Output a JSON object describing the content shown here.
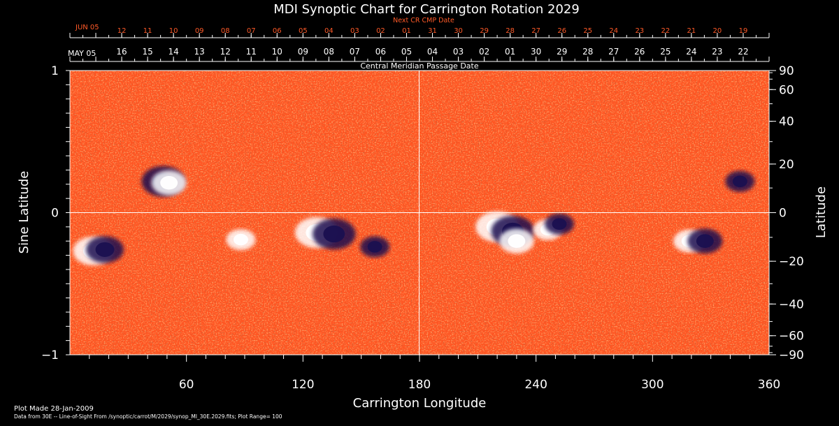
{
  "chart_data": {
    "type": "heatmap",
    "title": "MDI Synoptic Chart for Carrington Rotation 2029",
    "xlabel": "Carrington Longitude",
    "ylabel": "Sine Latitude",
    "y2label": "Latitude",
    "xlim": [
      0,
      360
    ],
    "ylim": [
      -1,
      1
    ],
    "x_ticks": [
      60,
      120,
      180,
      240,
      300,
      360
    ],
    "y_ticks": [
      {
        "value": 1,
        "label": "1"
      },
      {
        "value": 0,
        "label": "0"
      },
      {
        "value": -1,
        "label": "−1"
      }
    ],
    "lat_ticks": [
      90,
      60,
      40,
      20,
      0,
      -20,
      -40,
      -60,
      -90
    ],
    "lat_tick_labels": [
      "90",
      "60",
      "40",
      "20",
      "0",
      "−20",
      "−40",
      "−60",
      "−90"
    ],
    "next_cr_title": "Next CR CMP Date",
    "next_cr_start": "JUN 05",
    "next_cr_dates": [
      "12",
      "11",
      "10",
      "09",
      "08",
      "07",
      "06",
      "05",
      "04",
      "03",
      "02",
      "01",
      "31",
      "30",
      "29",
      "28",
      "27",
      "26",
      "25",
      "24",
      "23",
      "22",
      "21",
      "20",
      "19"
    ],
    "cmp_start": "MAY 05",
    "cmp_dates": [
      "16",
      "15",
      "14",
      "13",
      "12",
      "11",
      "10",
      "09",
      "08",
      "07",
      "06",
      "05",
      "04",
      "03",
      "02",
      "01",
      "30",
      "29",
      "28",
      "27",
      "26",
      "25",
      "24",
      "23",
      "22"
    ],
    "cmp_label": "Central Meridian Passage Date",
    "plot_range": 100,
    "colors": {
      "background": "#000000",
      "field": "#ff5522",
      "positive": "#ffffff",
      "negative": "#1a1050",
      "label_orange": "#ff5a28"
    },
    "regions": [
      {
        "lon": 48,
        "sinlat": 0.22,
        "polarity": "negative",
        "strength": 1.0
      },
      {
        "lon": 51,
        "sinlat": 0.21,
        "polarity": "positive",
        "strength": 0.7
      },
      {
        "lon": 12,
        "sinlat": -0.27,
        "polarity": "positive",
        "strength": 0.9
      },
      {
        "lon": 18,
        "sinlat": -0.26,
        "polarity": "negative",
        "strength": 0.8
      },
      {
        "lon": 88,
        "sinlat": -0.19,
        "polarity": "positive",
        "strength": 0.5
      },
      {
        "lon": 127,
        "sinlat": -0.14,
        "polarity": "positive",
        "strength": 1.0
      },
      {
        "lon": 136,
        "sinlat": -0.15,
        "polarity": "negative",
        "strength": 1.0
      },
      {
        "lon": 157,
        "sinlat": -0.24,
        "polarity": "negative",
        "strength": 0.5
      },
      {
        "lon": 220,
        "sinlat": -0.1,
        "polarity": "positive",
        "strength": 1.0
      },
      {
        "lon": 228,
        "sinlat": -0.13,
        "polarity": "negative",
        "strength": 1.0
      },
      {
        "lon": 230,
        "sinlat": -0.2,
        "polarity": "positive",
        "strength": 0.7
      },
      {
        "lon": 246,
        "sinlat": -0.12,
        "polarity": "positive",
        "strength": 0.5
      },
      {
        "lon": 252,
        "sinlat": -0.08,
        "polarity": "negative",
        "strength": 0.5
      },
      {
        "lon": 319,
        "sinlat": -0.2,
        "polarity": "positive",
        "strength": 0.6
      },
      {
        "lon": 327,
        "sinlat": -0.2,
        "polarity": "negative",
        "strength": 0.7
      },
      {
        "lon": 345,
        "sinlat": 0.22,
        "polarity": "negative",
        "strength": 0.5
      }
    ]
  },
  "footer": {
    "plot_made": "Plot Made 28-Jan-2009",
    "data_from": "Data from 30E -- Line-of-Sight From /synoptic/carrot/M/2029/synop_Ml_30E.2029.fits; Plot Range= 100"
  }
}
